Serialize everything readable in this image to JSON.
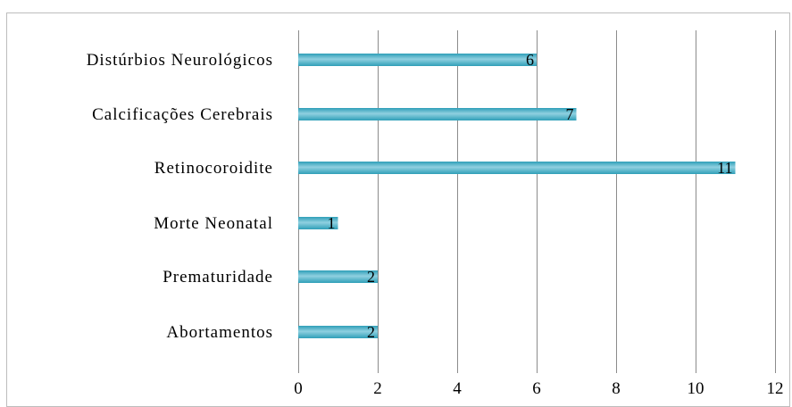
{
  "chart_data": {
    "type": "bar",
    "orientation": "horizontal",
    "categories": [
      "Distúrbios Neurológicos",
      "Calcificações Cerebrais",
      "Retinocoroidite",
      "Morte Neonatal",
      "Prematuridade",
      "Abortamentos"
    ],
    "values": [
      6,
      7,
      11,
      1,
      2,
      2
    ],
    "xlim": [
      0,
      12
    ],
    "x_ticks": [
      "0",
      "2",
      "4",
      "6",
      "8",
      "10",
      "12"
    ],
    "title": "",
    "xlabel": "",
    "ylabel": "",
    "grid": "vertical",
    "legend": "none",
    "bar_color": "#2f9fb8",
    "bar_highlight": "#8fd0e0",
    "grid_color": "#8c8c8c"
  }
}
